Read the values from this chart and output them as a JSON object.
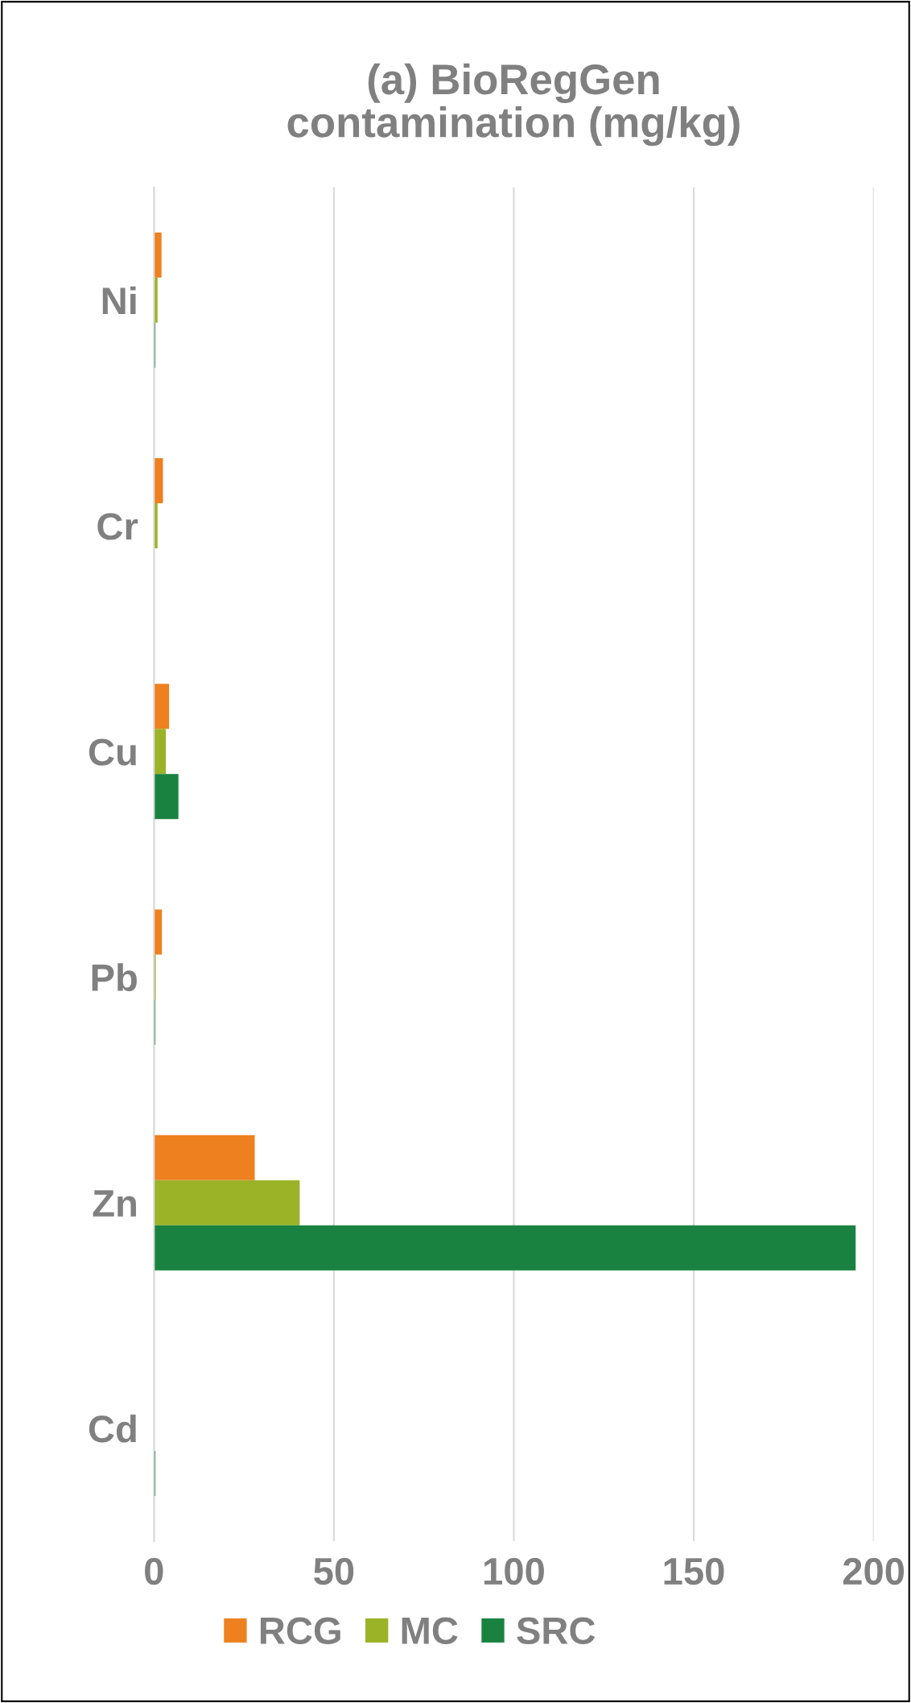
{
  "chart_data": {
    "type": "bar",
    "orientation": "horizontal",
    "title": "(a) BioRegGen\ncontamination (mg/kg)",
    "categories": [
      "Ni",
      "Cr",
      "Cu",
      "Pb",
      "Zn",
      "Cd"
    ],
    "series": [
      {
        "name": "RCG",
        "color": "#ee801f",
        "values": [
          2.1,
          2.5,
          4.2,
          2.2,
          28,
          0
        ]
      },
      {
        "name": "MC",
        "color": "#9bb327",
        "values": [
          1.0,
          1.0,
          3.3,
          0.5,
          40.5,
          0
        ]
      },
      {
        "name": "SRC",
        "color": "#1a8240",
        "values": [
          0.4,
          0,
          6.8,
          0.4,
          195,
          0.4
        ]
      }
    ],
    "xlim": [
      0,
      200
    ],
    "xticks": [
      0,
      50,
      100,
      150,
      200
    ],
    "grid": "x",
    "legend": "bottom"
  }
}
